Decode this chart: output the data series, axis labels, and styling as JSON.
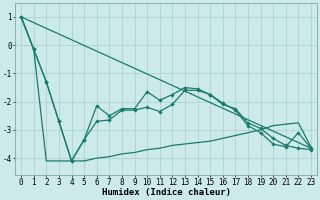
{
  "xlabel": "Humidex (Indice chaleur)",
  "bg_color": "#cceaea",
  "grid_color": "#aacccc",
  "line_color": "#1a7a6e",
  "xlim": [
    -0.5,
    23.5
  ],
  "ylim": [
    -4.6,
    1.5
  ],
  "yticks": [
    1,
    0,
    -1,
    -2,
    -3,
    -4
  ],
  "xticks": [
    0,
    1,
    2,
    3,
    4,
    5,
    6,
    7,
    8,
    9,
    10,
    11,
    12,
    13,
    14,
    15,
    16,
    17,
    18,
    19,
    20,
    21,
    22,
    23
  ],
  "line1_x": [
    0,
    1,
    2,
    3,
    4,
    5,
    6,
    7,
    8,
    9,
    10,
    11,
    12,
    13,
    14,
    15,
    16,
    17,
    18,
    19,
    20,
    21,
    22,
    23
  ],
  "line1_y": [
    1.0,
    -0.15,
    -1.3,
    -2.7,
    -4.1,
    -3.35,
    -2.15,
    -2.5,
    -2.25,
    -2.25,
    -1.65,
    -1.95,
    -1.75,
    -1.5,
    -1.55,
    -1.75,
    -2.05,
    -2.3,
    -2.85,
    -3.1,
    -3.5,
    -3.6,
    -3.1,
    -3.65
  ],
  "line2_x": [
    0,
    1,
    2,
    3,
    4,
    5,
    6,
    7,
    8,
    9,
    10,
    11,
    12,
    13,
    14,
    15,
    16,
    17,
    18,
    19,
    20,
    21,
    22,
    23
  ],
  "line2_y": [
    1.0,
    -0.15,
    -1.3,
    -2.7,
    -4.1,
    -3.35,
    -2.7,
    -2.65,
    -2.3,
    -2.3,
    -2.2,
    -2.35,
    -2.1,
    -1.6,
    -1.6,
    -1.75,
    -2.1,
    -2.25,
    -2.75,
    -2.95,
    -3.3,
    -3.55,
    -3.65,
    -3.7
  ],
  "line3_x": [
    0,
    1,
    2,
    3,
    4,
    5,
    6,
    7,
    8,
    9,
    10,
    11,
    12,
    13,
    14,
    15,
    16,
    17,
    18,
    19,
    20,
    21,
    22,
    23
  ],
  "line3_y": [
    1.0,
    -0.15,
    -4.1,
    -4.1,
    -4.1,
    -4.1,
    -4.0,
    -3.95,
    -3.85,
    -3.8,
    -3.7,
    -3.65,
    -3.55,
    -3.5,
    -3.45,
    -3.4,
    -3.3,
    -3.2,
    -3.1,
    -3.0,
    -2.85,
    -2.8,
    -2.75,
    -3.6
  ],
  "trend_x": [
    0,
    23
  ],
  "trend_y": [
    1.0,
    -3.65
  ],
  "fontsize_label": 6.5,
  "fontsize_tick": 5.5
}
